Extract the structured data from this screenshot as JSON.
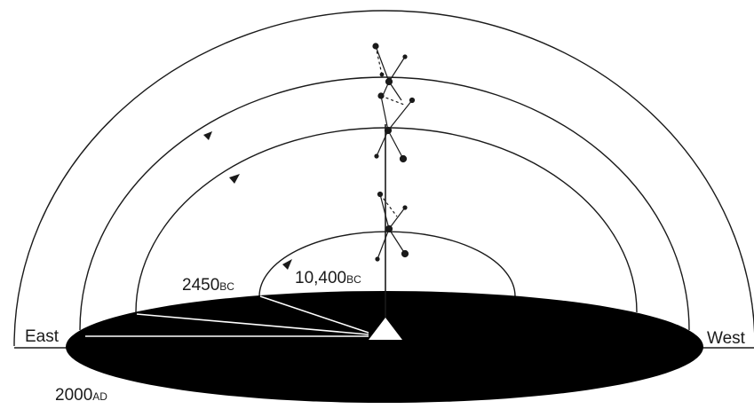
{
  "labels": {
    "east": "East",
    "west": "West",
    "date_2450": {
      "num": "2450",
      "era": "BC"
    },
    "date_10400": {
      "num": "10,400",
      "era": "BC"
    },
    "date_2000": {
      "num": "2000",
      "era": "AD"
    }
  },
  "colors": {
    "ink": "#1a1a1a",
    "ground": "#000000",
    "paper": "#ffffff"
  }
}
